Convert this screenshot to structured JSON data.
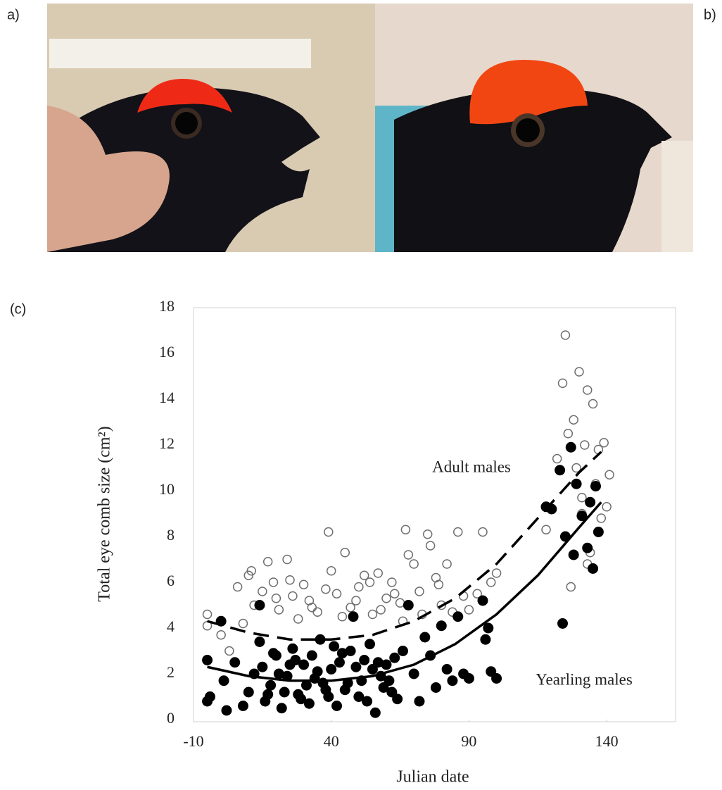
{
  "panel_labels": {
    "a": "a)",
    "b": "b)",
    "c": "(c)"
  },
  "chart_data": {
    "type": "scatter",
    "xlabel": "Julian date",
    "ylabel": "Total eye comb size (cm²)",
    "xlim": [
      -10,
      165
    ],
    "xticks": [
      -10,
      40,
      90,
      140
    ],
    "ylim": [
      0,
      18
    ],
    "yticks": [
      0,
      2,
      4,
      6,
      8,
      10,
      12,
      14,
      16,
      18
    ],
    "grid": false,
    "series": [
      {
        "name": "Adult males",
        "marker": "open",
        "color": "#6e6e6e",
        "x": [
          -5,
          -5,
          0,
          3,
          6,
          8,
          10,
          11,
          12,
          15,
          17,
          19,
          21,
          24,
          26,
          28,
          30,
          32,
          35,
          39,
          40,
          42,
          45,
          47,
          50,
          52,
          55,
          57,
          60,
          62,
          65,
          67,
          68,
          70,
          72,
          75,
          76,
          78,
          80,
          82,
          84,
          86,
          88,
          90,
          93,
          95,
          98,
          100,
          20,
          25,
          33,
          38,
          44,
          49,
          54,
          58,
          63,
          66,
          73,
          79,
          118,
          122,
          124,
          125,
          126,
          127,
          128,
          129,
          130,
          131,
          132,
          133,
          134,
          135,
          136,
          137,
          138,
          139,
          140,
          141,
          133,
          131
        ],
        "values": [
          4.6,
          4.1,
          3.7,
          3.0,
          5.8,
          4.2,
          6.3,
          6.5,
          5.0,
          5.6,
          6.9,
          6.0,
          4.8,
          7.0,
          5.4,
          4.4,
          5.9,
          5.2,
          4.7,
          8.2,
          6.5,
          5.5,
          7.3,
          4.9,
          5.8,
          6.3,
          4.6,
          6.4,
          5.3,
          6.0,
          5.1,
          8.3,
          7.2,
          6.8,
          5.6,
          8.1,
          7.6,
          6.2,
          5.0,
          6.8,
          4.7,
          8.2,
          5.4,
          4.8,
          5.5,
          8.2,
          6.0,
          6.4,
          5.3,
          6.1,
          4.9,
          5.7,
          4.5,
          5.2,
          6.0,
          4.8,
          5.5,
          4.3,
          4.6,
          5.9,
          8.3,
          11.4,
          14.7,
          16.8,
          12.5,
          5.8,
          13.1,
          11.0,
          15.2,
          9.7,
          12.0,
          14.4,
          7.3,
          13.8,
          10.3,
          11.8,
          8.8,
          12.1,
          9.3,
          10.7,
          6.8,
          9.0
        ]
      },
      {
        "name": "Yearling males",
        "marker": "filled",
        "color": "#000000",
        "x": [
          -5,
          -5,
          -4,
          0,
          1,
          2,
          5,
          8,
          10,
          12,
          14,
          14,
          16,
          18,
          20,
          22,
          24,
          26,
          28,
          30,
          32,
          34,
          36,
          38,
          40,
          42,
          44,
          46,
          48,
          50,
          52,
          54,
          56,
          58,
          60,
          62,
          64,
          66,
          68,
          70,
          72,
          74,
          76,
          78,
          80,
          82,
          84,
          86,
          88,
          90,
          95,
          96,
          98,
          100,
          97,
          15,
          19,
          23,
          27,
          31,
          35,
          39,
          43,
          47,
          51,
          55,
          59,
          63,
          17,
          21,
          25,
          29,
          33,
          37,
          41,
          45,
          49,
          53,
          57,
          61,
          118,
          120,
          123,
          124,
          125,
          127,
          128,
          129,
          131,
          133,
          134,
          135,
          136,
          137
        ],
        "values": [
          2.6,
          0.8,
          1.0,
          4.3,
          1.7,
          0.4,
          2.5,
          0.6,
          1.2,
          2.0,
          3.4,
          5.0,
          0.8,
          1.5,
          2.8,
          0.5,
          1.9,
          3.1,
          1.1,
          2.4,
          0.7,
          1.8,
          3.5,
          1.3,
          2.2,
          0.6,
          2.9,
          1.6,
          4.5,
          1.0,
          2.6,
          3.3,
          0.3,
          1.9,
          2.4,
          1.2,
          0.9,
          3.0,
          5.0,
          2.0,
          0.8,
          3.6,
          2.8,
          1.4,
          4.1,
          2.2,
          1.7,
          4.5,
          2.0,
          1.8,
          5.2,
          3.5,
          2.1,
          1.8,
          4.0,
          2.3,
          2.9,
          1.2,
          2.6,
          1.5,
          2.1,
          1.0,
          2.5,
          3.0,
          1.7,
          2.2,
          1.4,
          2.7,
          1.1,
          2.0,
          2.4,
          0.9,
          2.8,
          1.6,
          3.2,
          1.3,
          2.3,
          0.8,
          2.5,
          1.7,
          9.3,
          9.2,
          10.9,
          4.2,
          8.0,
          11.9,
          7.2,
          10.3,
          8.9,
          7.5,
          9.5,
          6.6,
          10.2,
          8.2
        ]
      }
    ],
    "fits": [
      {
        "style": "dashed",
        "x": [
          -5,
          10,
          25,
          40,
          55,
          70,
          85,
          100,
          115,
          130,
          138
        ],
        "values": [
          4.3,
          3.8,
          3.5,
          3.5,
          3.7,
          4.3,
          5.3,
          6.8,
          8.8,
          10.8,
          11.7
        ]
      },
      {
        "style": "solid",
        "x": [
          -5,
          10,
          25,
          40,
          55,
          70,
          85,
          100,
          115,
          130,
          138
        ],
        "values": [
          2.3,
          1.9,
          1.7,
          1.7,
          1.9,
          2.4,
          3.3,
          4.6,
          6.3,
          8.4,
          9.5
        ]
      }
    ]
  }
}
